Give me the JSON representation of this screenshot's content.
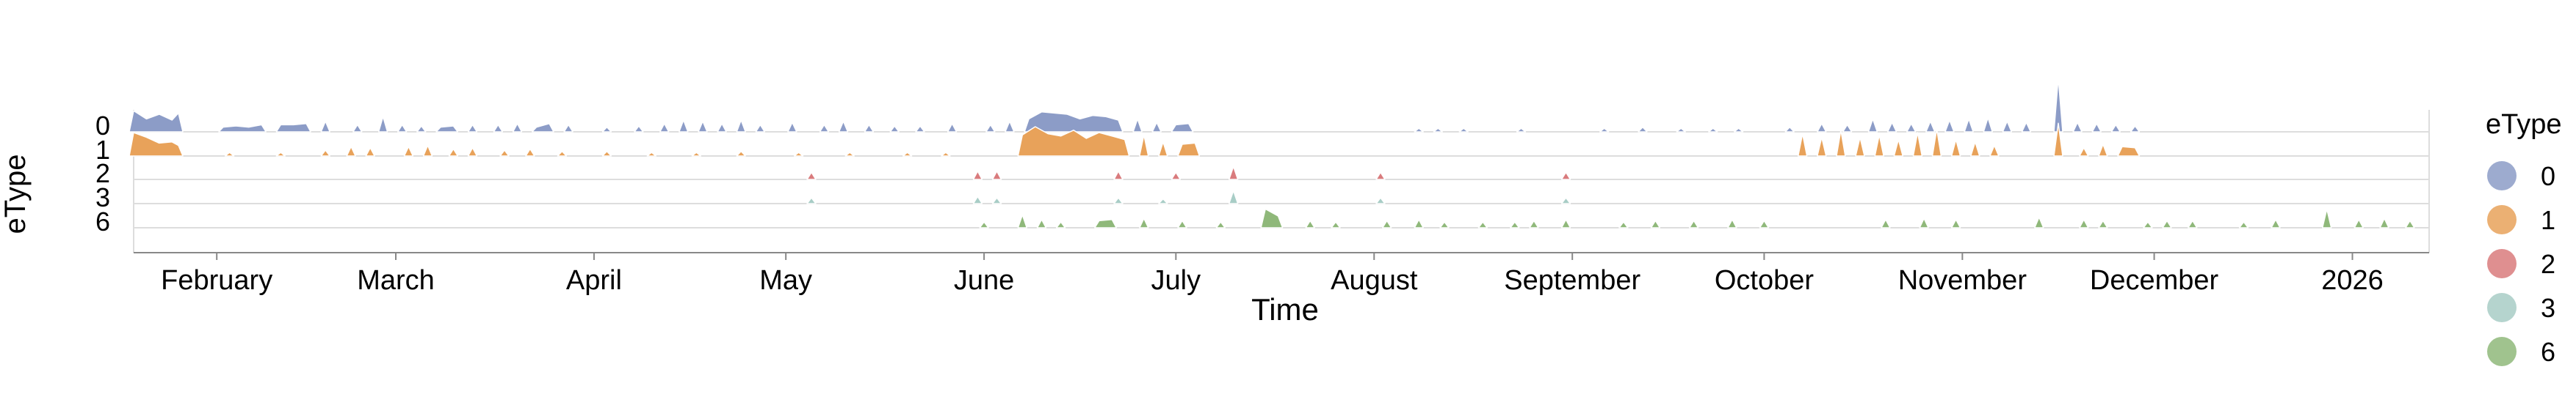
{
  "chart_data": {
    "type": "area",
    "subtype": "ridgeline",
    "x_axis": {
      "title": "Time",
      "scale": "time",
      "domain": [
        "2025-01-19",
        "2026-01-13"
      ],
      "ticks": [
        {
          "date": "2025-02-01",
          "label": "February"
        },
        {
          "date": "2025-03-01",
          "label": "March"
        },
        {
          "date": "2025-04-01",
          "label": "April"
        },
        {
          "date": "2025-05-01",
          "label": "May"
        },
        {
          "date": "2025-06-01",
          "label": "June"
        },
        {
          "date": "2025-07-01",
          "label": "July"
        },
        {
          "date": "2025-08-01",
          "label": "August"
        },
        {
          "date": "2025-09-01",
          "label": "September"
        },
        {
          "date": "2025-10-01",
          "label": "October"
        },
        {
          "date": "2025-11-01",
          "label": "November"
        },
        {
          "date": "2025-12-01",
          "label": "December"
        },
        {
          "date": "2026-01-01",
          "label": "2026"
        }
      ]
    },
    "y_axis": {
      "title": "eType",
      "categories": [
        "0",
        "1",
        "2",
        "3",
        "6"
      ]
    },
    "legend": {
      "title": "eType",
      "position": "right",
      "items": [
        {
          "label": "0",
          "color": "#8c9cc7"
        },
        {
          "label": "1",
          "color": "#e8a25a"
        },
        {
          "label": "2",
          "color": "#d97b7d"
        },
        {
          "label": "3",
          "color": "#a8cdc6"
        },
        {
          "label": "6",
          "color": "#8fb87a"
        }
      ]
    },
    "grid": true,
    "series": [
      {
        "category": "0",
        "color": "#8c9cc7",
        "points": [
          [
            "2025-01-19",
            0.9
          ],
          [
            "2025-01-21",
            0.55
          ],
          [
            "2025-01-23",
            0.75
          ],
          [
            "2025-01-25",
            0.5
          ],
          [
            "2025-01-26",
            0.8
          ],
          [
            "2025-02-02",
            0.2
          ],
          [
            "2025-02-04",
            0.25
          ],
          [
            "2025-02-06",
            0.2
          ],
          [
            "2025-02-08",
            0.3
          ],
          [
            "2025-02-11",
            0.3
          ],
          [
            "2025-02-13",
            0.3
          ],
          [
            "2025-02-15",
            0.35
          ],
          [
            "2025-02-18",
            0.45
          ],
          [
            "2025-02-23",
            0.3
          ],
          [
            "2025-02-27",
            0.65
          ],
          [
            "2025-03-02",
            0.3
          ],
          [
            "2025-03-05",
            0.25
          ],
          [
            "2025-03-08",
            0.2
          ],
          [
            "2025-03-10",
            0.25
          ],
          [
            "2025-03-13",
            0.3
          ],
          [
            "2025-03-17",
            0.3
          ],
          [
            "2025-03-20",
            0.35
          ],
          [
            "2025-03-23",
            0.2
          ],
          [
            "2025-03-25",
            0.35
          ],
          [
            "2025-03-28",
            0.3
          ],
          [
            "2025-04-03",
            0.2
          ],
          [
            "2025-04-08",
            0.25
          ],
          [
            "2025-04-12",
            0.35
          ],
          [
            "2025-04-15",
            0.5
          ],
          [
            "2025-04-18",
            0.45
          ],
          [
            "2025-04-21",
            0.35
          ],
          [
            "2025-04-24",
            0.5
          ],
          [
            "2025-04-27",
            0.3
          ],
          [
            "2025-05-02",
            0.4
          ],
          [
            "2025-05-07",
            0.3
          ],
          [
            "2025-05-10",
            0.45
          ],
          [
            "2025-05-14",
            0.3
          ],
          [
            "2025-05-18",
            0.25
          ],
          [
            "2025-05-22",
            0.25
          ],
          [
            "2025-05-27",
            0.35
          ],
          [
            "2025-06-02",
            0.3
          ],
          [
            "2025-06-05",
            0.45
          ],
          [
            "2025-06-08",
            0.55
          ],
          [
            "2025-06-10",
            0.85
          ],
          [
            "2025-06-12",
            0.8
          ],
          [
            "2025-06-14",
            0.75
          ],
          [
            "2025-06-16",
            0.55
          ],
          [
            "2025-06-18",
            0.7
          ],
          [
            "2025-06-20",
            0.65
          ],
          [
            "2025-06-22",
            0.5
          ],
          [
            "2025-06-25",
            0.55
          ],
          [
            "2025-06-28",
            0.4
          ],
          [
            "2025-07-01",
            0.3
          ],
          [
            "2025-07-03",
            0.35
          ],
          [
            "2025-08-08",
            0.15
          ],
          [
            "2025-08-11",
            0.15
          ],
          [
            "2025-08-15",
            0.15
          ],
          [
            "2025-08-24",
            0.15
          ],
          [
            "2025-09-06",
            0.15
          ],
          [
            "2025-09-12",
            0.2
          ],
          [
            "2025-09-18",
            0.15
          ],
          [
            "2025-09-23",
            0.15
          ],
          [
            "2025-09-27",
            0.15
          ],
          [
            "2025-10-05",
            0.2
          ],
          [
            "2025-10-10",
            0.35
          ],
          [
            "2025-10-14",
            0.3
          ],
          [
            "2025-10-18",
            0.55
          ],
          [
            "2025-10-21",
            0.4
          ],
          [
            "2025-10-24",
            0.35
          ],
          [
            "2025-10-27",
            0.45
          ],
          [
            "2025-10-30",
            0.5
          ],
          [
            "2025-11-02",
            0.55
          ],
          [
            "2025-11-05",
            0.6
          ],
          [
            "2025-11-08",
            0.45
          ],
          [
            "2025-11-11",
            0.4
          ],
          [
            "2025-11-16",
            2.3
          ],
          [
            "2025-11-19",
            0.4
          ],
          [
            "2025-11-22",
            0.35
          ],
          [
            "2025-11-25",
            0.3
          ],
          [
            "2025-11-28",
            0.25
          ]
        ]
      },
      {
        "category": "1",
        "color": "#e8a25a",
        "points": [
          [
            "2025-01-19",
            1.0
          ],
          [
            "2025-01-21",
            0.8
          ],
          [
            "2025-01-23",
            0.55
          ],
          [
            "2025-01-25",
            0.6
          ],
          [
            "2025-01-26",
            0.45
          ],
          [
            "2025-02-03",
            0.15
          ],
          [
            "2025-02-11",
            0.15
          ],
          [
            "2025-02-18",
            0.25
          ],
          [
            "2025-02-22",
            0.4
          ],
          [
            "2025-02-25",
            0.35
          ],
          [
            "2025-03-03",
            0.4
          ],
          [
            "2025-03-06",
            0.45
          ],
          [
            "2025-03-10",
            0.3
          ],
          [
            "2025-03-13",
            0.35
          ],
          [
            "2025-03-18",
            0.25
          ],
          [
            "2025-03-22",
            0.3
          ],
          [
            "2025-03-27",
            0.2
          ],
          [
            "2025-04-03",
            0.2
          ],
          [
            "2025-04-10",
            0.15
          ],
          [
            "2025-04-17",
            0.15
          ],
          [
            "2025-04-24",
            0.2
          ],
          [
            "2025-05-03",
            0.15
          ],
          [
            "2025-05-11",
            0.15
          ],
          [
            "2025-05-20",
            0.15
          ],
          [
            "2025-05-26",
            0.15
          ],
          [
            "2025-06-07",
            0.9
          ],
          [
            "2025-06-09",
            1.25
          ],
          [
            "2025-06-11",
            0.95
          ],
          [
            "2025-06-13",
            0.85
          ],
          [
            "2025-06-15",
            1.1
          ],
          [
            "2025-06-17",
            0.75
          ],
          [
            "2025-06-19",
            1.0
          ],
          [
            "2025-06-21",
            0.85
          ],
          [
            "2025-06-23",
            0.7
          ],
          [
            "2025-06-26",
            0.9
          ],
          [
            "2025-06-29",
            0.6
          ],
          [
            "2025-07-02",
            0.5
          ],
          [
            "2025-07-04",
            0.55
          ],
          [
            "2025-10-07",
            0.95
          ],
          [
            "2025-10-10",
            0.8
          ],
          [
            "2025-10-13",
            1.1
          ],
          [
            "2025-10-16",
            0.8
          ],
          [
            "2025-10-19",
            0.9
          ],
          [
            "2025-10-22",
            0.7
          ],
          [
            "2025-10-25",
            1.0
          ],
          [
            "2025-10-28",
            1.15
          ],
          [
            "2025-10-31",
            0.7
          ],
          [
            "2025-11-03",
            0.6
          ],
          [
            "2025-11-06",
            0.45
          ],
          [
            "2025-11-16",
            1.4
          ],
          [
            "2025-11-20",
            0.35
          ],
          [
            "2025-11-23",
            0.5
          ],
          [
            "2025-11-26",
            0.4
          ],
          [
            "2025-11-28",
            0.35
          ]
        ]
      },
      {
        "category": "2",
        "color": "#d97b7d",
        "points": [
          [
            "2025-05-05",
            0.3
          ],
          [
            "2025-05-31",
            0.35
          ],
          [
            "2025-06-03",
            0.35
          ],
          [
            "2025-06-22",
            0.35
          ],
          [
            "2025-07-01",
            0.3
          ],
          [
            "2025-07-10",
            0.55
          ],
          [
            "2025-08-02",
            0.3
          ],
          [
            "2025-08-31",
            0.3
          ]
        ]
      },
      {
        "category": "3",
        "color": "#a8cdc6",
        "points": [
          [
            "2025-05-05",
            0.25
          ],
          [
            "2025-05-31",
            0.3
          ],
          [
            "2025-06-03",
            0.25
          ],
          [
            "2025-06-22",
            0.25
          ],
          [
            "2025-06-29",
            0.2
          ],
          [
            "2025-07-10",
            0.55
          ],
          [
            "2025-08-02",
            0.25
          ],
          [
            "2025-08-31",
            0.25
          ]
        ]
      },
      {
        "category": "6",
        "color": "#8fb87a",
        "points": [
          [
            "2025-06-01",
            0.25
          ],
          [
            "2025-06-07",
            0.55
          ],
          [
            "2025-06-10",
            0.35
          ],
          [
            "2025-06-13",
            0.25
          ],
          [
            "2025-06-19",
            0.3
          ],
          [
            "2025-06-21",
            0.35
          ],
          [
            "2025-06-26",
            0.4
          ],
          [
            "2025-07-02",
            0.3
          ],
          [
            "2025-07-08",
            0.25
          ],
          [
            "2025-07-15",
            0.8
          ],
          [
            "2025-07-17",
            0.5
          ],
          [
            "2025-07-22",
            0.3
          ],
          [
            "2025-07-26",
            0.25
          ],
          [
            "2025-08-03",
            0.3
          ],
          [
            "2025-08-08",
            0.35
          ],
          [
            "2025-08-12",
            0.25
          ],
          [
            "2025-08-18",
            0.25
          ],
          [
            "2025-08-23",
            0.25
          ],
          [
            "2025-08-26",
            0.3
          ],
          [
            "2025-08-31",
            0.35
          ],
          [
            "2025-09-09",
            0.25
          ],
          [
            "2025-09-14",
            0.3
          ],
          [
            "2025-09-20",
            0.3
          ],
          [
            "2025-09-26",
            0.35
          ],
          [
            "2025-10-01",
            0.3
          ],
          [
            "2025-10-20",
            0.35
          ],
          [
            "2025-10-26",
            0.4
          ],
          [
            "2025-10-31",
            0.35
          ],
          [
            "2025-11-13",
            0.45
          ],
          [
            "2025-11-20",
            0.35
          ],
          [
            "2025-11-23",
            0.3
          ],
          [
            "2025-11-30",
            0.25
          ],
          [
            "2025-12-03",
            0.3
          ],
          [
            "2025-12-07",
            0.3
          ],
          [
            "2025-12-15",
            0.25
          ],
          [
            "2025-12-20",
            0.35
          ],
          [
            "2025-12-28",
            0.8
          ],
          [
            "2026-01-02",
            0.35
          ],
          [
            "2026-01-06",
            0.4
          ],
          [
            "2026-01-10",
            0.3
          ]
        ]
      }
    ]
  }
}
